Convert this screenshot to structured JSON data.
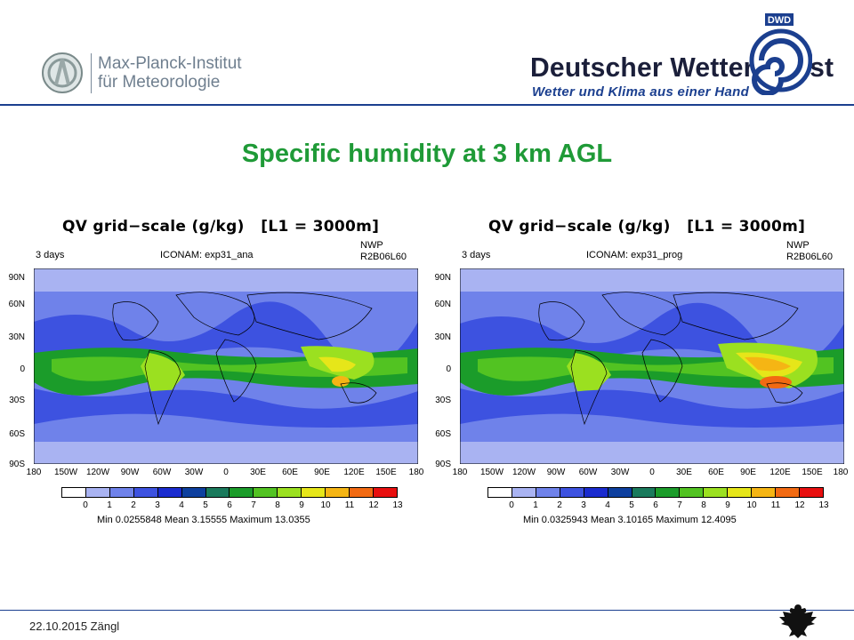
{
  "header": {
    "mpi_name_line1": "Max-Planck-Institut",
    "mpi_name_line2": "für Meteorologie",
    "dwd_title": "Deutscher Wetterdienst",
    "dwd_subtitle": "Wetter und Klima aus einer Hand",
    "dwd_logo_text": "DWD"
  },
  "slide_title": "Specific humidity at 3 km AGL",
  "panels": [
    {
      "title": "QV grid−scale (g/kg)   [L1 = 3000m]",
      "days": "3 days",
      "experiment": "ICONAM: exp31_ana",
      "nwp_line1": "NWP",
      "nwp_line2": "R2B06L60",
      "stats": "Min 0.0255848   Mean 3.15555   Maximum 13.0355"
    },
    {
      "title": "QV grid−scale (g/kg)   [L1 = 3000m]",
      "days": "3 days",
      "experiment": "ICONAM: exp31_prog",
      "nwp_line1": "NWP",
      "nwp_line2": "R2B06L60",
      "stats": "Min 0.0325943   Mean 3.10165   Maximum 12.4095"
    }
  ],
  "axis": {
    "y_labels": [
      "90N",
      "60N",
      "30N",
      "0",
      "30S",
      "60S",
      "90S"
    ],
    "x_labels": [
      "180",
      "150W",
      "120W",
      "90W",
      "60W",
      "30W",
      "0",
      "30E",
      "60E",
      "90E",
      "120E",
      "150E",
      "180"
    ]
  },
  "colorbar": {
    "labels": [
      "0",
      "1",
      "2",
      "3",
      "4",
      "5",
      "6",
      "7",
      "8",
      "9",
      "10",
      "11",
      "12",
      "13"
    ],
    "colors": [
      "#ffffff",
      "#a9b3f2",
      "#6f82ea",
      "#3d52e0",
      "#1a2bcf",
      "#0d3f9e",
      "#1a7a5c",
      "#1b9c2a",
      "#52c322",
      "#9be020",
      "#e6e619",
      "#f5b514",
      "#f26a12",
      "#e80f0f"
    ]
  },
  "footer": {
    "text": "22.10.2015  Zängl"
  }
}
